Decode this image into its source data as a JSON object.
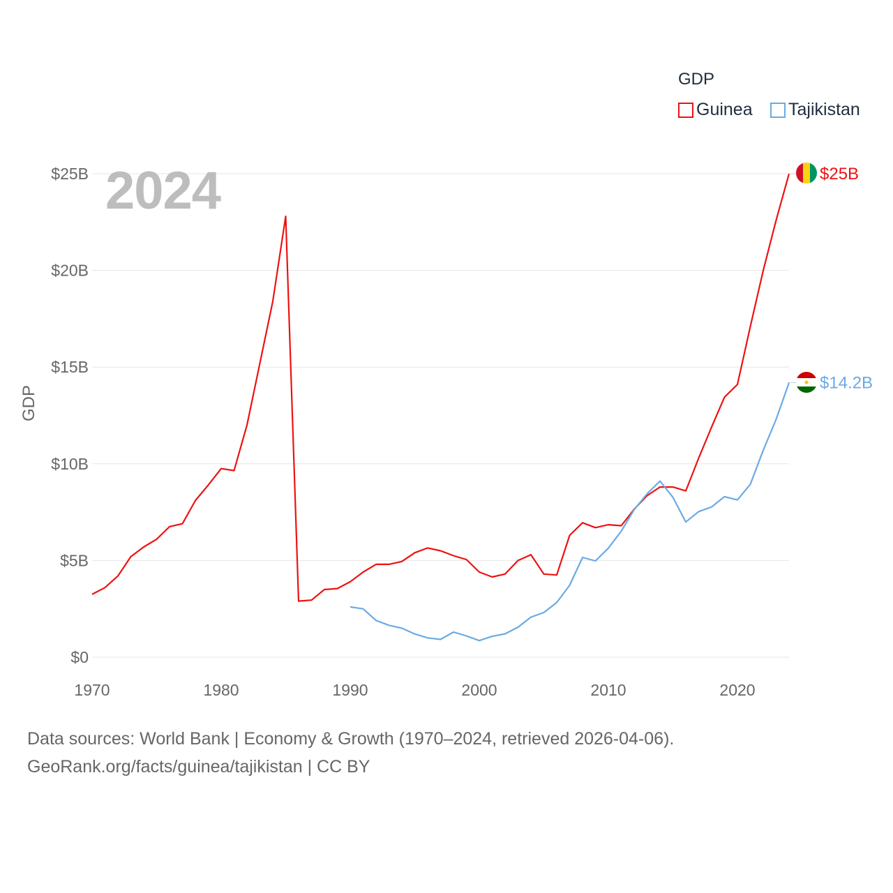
{
  "legend": {
    "title": "GDP",
    "items": [
      {
        "name": "Guinea",
        "color": "#ee1111"
      },
      {
        "name": "Tajikistan",
        "color": "#6aaae4"
      }
    ]
  },
  "big_year": "2024",
  "footer": {
    "line1": "Data sources: World Bank | Economy & Growth (1970–2024, retrieved 2026-04-06).",
    "line2": "GeoRank.org/facts/guinea/tajikistan | CC BY"
  },
  "chart_data": {
    "type": "line",
    "title": "",
    "xlabel": "",
    "ylabel": "GDP",
    "xlim": [
      1970,
      2024
    ],
    "ylim": [
      0,
      25
    ],
    "x_ticks": [
      1970,
      1980,
      1990,
      2000,
      2010,
      2020
    ],
    "y_ticks": [
      0,
      5,
      10,
      15,
      20,
      25
    ],
    "y_tick_labels": [
      "$0",
      "$5B",
      "$10B",
      "$15B",
      "$20B",
      "$25B"
    ],
    "grid": true,
    "legend_position": "top-right",
    "series": [
      {
        "name": "Guinea",
        "color": "#ee1111",
        "end_label": "$25B",
        "flag": "guinea",
        "x": [
          1970,
          1971,
          1972,
          1973,
          1974,
          1975,
          1976,
          1977,
          1978,
          1979,
          1980,
          1981,
          1982,
          1983,
          1984,
          1985,
          1986,
          1987,
          1988,
          1989,
          1990,
          1991,
          1992,
          1993,
          1994,
          1995,
          1996,
          1997,
          1998,
          1999,
          2000,
          2001,
          2002,
          2003,
          2004,
          2005,
          2006,
          2007,
          2008,
          2009,
          2010,
          2011,
          2012,
          2013,
          2014,
          2015,
          2016,
          2017,
          2018,
          2019,
          2020,
          2021,
          2022,
          2023,
          2024
        ],
        "values": [
          3.25,
          3.6,
          4.2,
          5.2,
          5.7,
          6.1,
          6.75,
          6.9,
          8.1,
          8.9,
          9.75,
          9.65,
          12.0,
          15.2,
          18.4,
          22.8,
          2.9,
          2.95,
          3.5,
          3.55,
          3.9,
          4.4,
          4.8,
          4.8,
          4.95,
          5.4,
          5.65,
          5.5,
          5.25,
          5.05,
          4.4,
          4.15,
          4.3,
          5.0,
          5.3,
          4.3,
          4.25,
          6.3,
          6.95,
          6.7,
          6.85,
          6.8,
          7.65,
          8.35,
          8.8,
          8.8,
          8.6,
          10.3,
          11.9,
          13.45,
          14.1,
          17.1,
          20.0,
          22.6,
          25.0
        ]
      },
      {
        "name": "Tajikistan",
        "color": "#6aaae4",
        "end_label": "$14.2B",
        "flag": "tajikistan",
        "x": [
          1990,
          1991,
          1992,
          1993,
          1994,
          1995,
          1996,
          1997,
          1998,
          1999,
          2000,
          2001,
          2002,
          2003,
          2004,
          2005,
          2006,
          2007,
          2008,
          2009,
          2010,
          2011,
          2012,
          2013,
          2014,
          2015,
          2016,
          2017,
          2018,
          2019,
          2020,
          2021,
          2022,
          2023,
          2024
        ],
        "values": [
          2.6,
          2.5,
          1.9,
          1.65,
          1.5,
          1.2,
          1.0,
          0.92,
          1.3,
          1.1,
          0.86,
          1.08,
          1.21,
          1.55,
          2.07,
          2.31,
          2.83,
          3.72,
          5.16,
          4.98,
          5.64,
          6.52,
          7.63,
          8.45,
          9.11,
          8.27,
          6.99,
          7.53,
          7.77,
          8.3,
          8.13,
          8.94,
          10.7,
          12.3,
          14.2
        ]
      }
    ]
  }
}
